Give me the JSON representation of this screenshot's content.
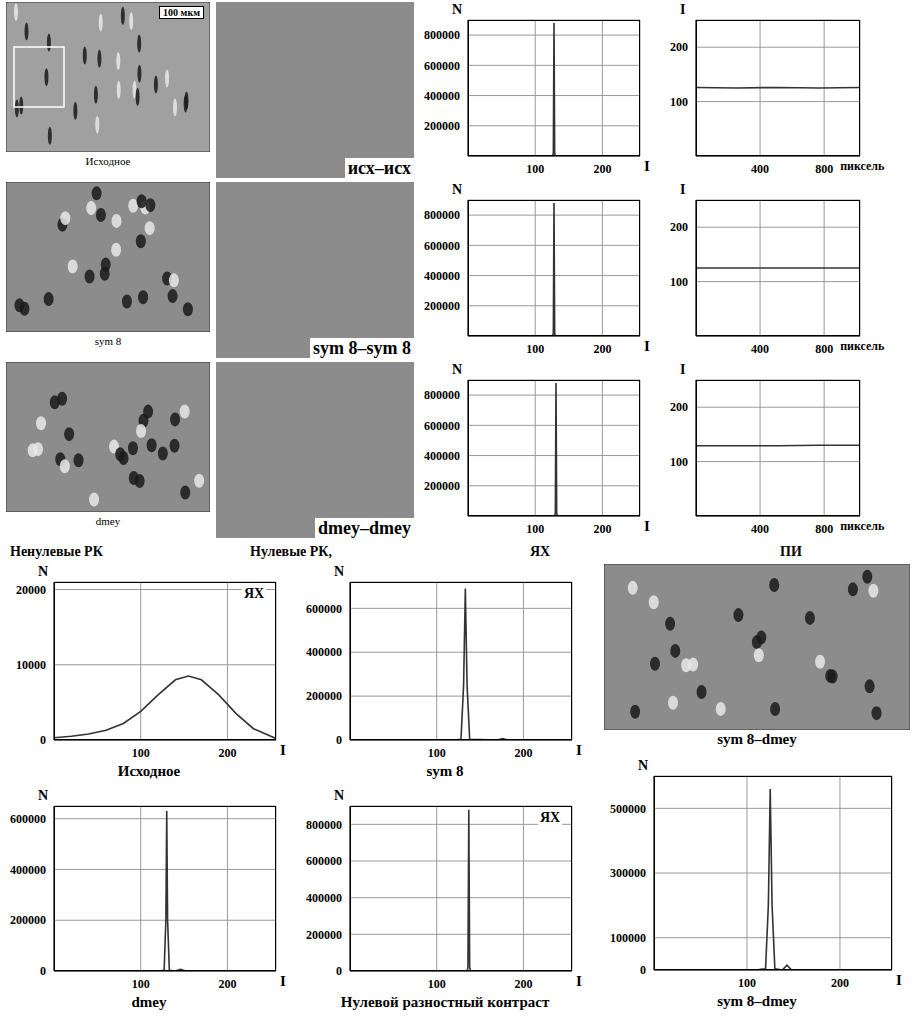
{
  "images": [
    {
      "caption": "Исходное",
      "scale_bar": "100 мкм"
    },
    {
      "caption": "sym 8"
    },
    {
      "caption": "dmey"
    }
  ],
  "difference_images": [
    "исх–исх",
    "sym 8–sym 8",
    "dmey–dmey"
  ],
  "column_heads": [
    "Ненулевые РК",
    "Нулевые РК,",
    "ЯХ",
    "ПИ"
  ],
  "bottom_image": {
    "caption": "sym 8–dmey"
  },
  "chart_data": [
    {
      "type": "line",
      "x_label": "I",
      "y_label": "N",
      "x": [
        0,
        120,
        126,
        127,
        128,
        129,
        130,
        136,
        256
      ],
      "values": [
        0,
        0,
        0,
        20000,
        880000,
        20000,
        0,
        0,
        0
      ],
      "xlim": [
        0,
        256
      ],
      "ylim": [
        0,
        900000
      ],
      "xticks": [
        100,
        200
      ],
      "yticks": [
        200000,
        400000,
        600000,
        800000
      ],
      "grid": true,
      "color": "#333333"
    },
    {
      "type": "line",
      "x_label": "пиксель",
      "y_label": "I",
      "x": [
        0,
        256,
        512,
        768,
        1024
      ],
      "values": [
        126,
        125,
        126,
        125,
        126
      ],
      "xlim": [
        0,
        1024
      ],
      "ylim": [
        0,
        250
      ],
      "xticks": [
        400,
        800
      ],
      "yticks": [
        100,
        200
      ],
      "grid": true,
      "color": "#333333"
    },
    {
      "type": "line",
      "x_label": "I",
      "y_label": "N",
      "x": [
        0,
        120,
        126,
        127,
        128,
        129,
        130,
        136,
        256
      ],
      "values": [
        0,
        0,
        0,
        20000,
        880000,
        20000,
        0,
        0,
        0
      ],
      "xlim": [
        0,
        256
      ],
      "ylim": [
        0,
        900000
      ],
      "xticks": [
        100,
        200
      ],
      "yticks": [
        200000,
        400000,
        600000,
        800000
      ],
      "grid": true,
      "color": "#333333"
    },
    {
      "type": "line",
      "x_label": "пиксель",
      "y_label": "I",
      "x": [
        0,
        256,
        512,
        768,
        1024
      ],
      "values": [
        125,
        125,
        125,
        125,
        125
      ],
      "xlim": [
        0,
        1024
      ],
      "ylim": [
        0,
        250
      ],
      "xticks": [
        400,
        800
      ],
      "yticks": [
        100,
        200
      ],
      "grid": true,
      "color": "#333333"
    },
    {
      "type": "line",
      "x_label": "I",
      "y_label": "N",
      "x": [
        0,
        123,
        129,
        130,
        131,
        132,
        133,
        139,
        256
      ],
      "values": [
        0,
        0,
        0,
        20000,
        880000,
        20000,
        0,
        0,
        0
      ],
      "xlim": [
        0,
        256
      ],
      "ylim": [
        0,
        900000
      ],
      "xticks": [
        100,
        200
      ],
      "yticks": [
        200000,
        400000,
        600000,
        800000
      ],
      "grid": true,
      "color": "#333333"
    },
    {
      "type": "line",
      "x_label": "пиксель",
      "y_label": "I",
      "x": [
        0,
        256,
        512,
        768,
        1024
      ],
      "values": [
        129,
        129,
        129,
        130,
        130
      ],
      "xlim": [
        0,
        1024
      ],
      "ylim": [
        0,
        250
      ],
      "xticks": [
        400,
        800
      ],
      "yticks": [
        100,
        200
      ],
      "grid": true,
      "color": "#333333"
    },
    {
      "type": "line",
      "title": "Исходное",
      "annotation": "ЯХ",
      "x_label": "I",
      "y_label": "N",
      "x": [
        0,
        20,
        40,
        60,
        80,
        100,
        120,
        140,
        155,
        170,
        190,
        210,
        230,
        250,
        256
      ],
      "values": [
        300,
        500,
        800,
        1300,
        2200,
        3800,
        6000,
        8000,
        8500,
        8000,
        6000,
        3500,
        1500,
        500,
        200
      ],
      "xlim": [
        0,
        256
      ],
      "ylim": [
        0,
        21000
      ],
      "xticks": [
        100,
        200
      ],
      "yticks": [
        0,
        10000,
        20000
      ],
      "grid": true,
      "color": "#333333"
    },
    {
      "type": "line",
      "title": "sym 8",
      "x_label": "I",
      "y_label": "N",
      "x": [
        0,
        120,
        128,
        131,
        133,
        135,
        138,
        170,
        176,
        182,
        256
      ],
      "values": [
        0,
        0,
        3000,
        250000,
        690000,
        250000,
        3000,
        0,
        6000,
        0,
        0
      ],
      "xlim": [
        0,
        256
      ],
      "ylim": [
        0,
        720000
      ],
      "xticks": [
        100,
        200
      ],
      "yticks": [
        0,
        200000,
        400000,
        600000
      ],
      "grid": true,
      "color": "#333333"
    },
    {
      "type": "line",
      "title": "dmey",
      "x_label": "I",
      "y_label": "N",
      "x": [
        0,
        120,
        127,
        129,
        130,
        131,
        133,
        140,
        146,
        152,
        256
      ],
      "values": [
        0,
        0,
        3000,
        200000,
        630000,
        200000,
        3000,
        0,
        7000,
        0,
        0
      ],
      "xlim": [
        0,
        256
      ],
      "ylim": [
        0,
        650000
      ],
      "xticks": [
        100,
        200
      ],
      "yticks": [
        0,
        200000,
        400000,
        600000
      ],
      "grid": true,
      "color": "#333333"
    },
    {
      "type": "line",
      "title": "Нулевой разностный контраст",
      "annotation": "ЯХ",
      "x_label": "I",
      "y_label": "N",
      "x": [
        0,
        130,
        135,
        136,
        137,
        138,
        139,
        256
      ],
      "values": [
        0,
        0,
        0,
        20000,
        880000,
        20000,
        0,
        0
      ],
      "xlim": [
        0,
        256
      ],
      "ylim": [
        0,
        900000
      ],
      "xticks": [
        100,
        200
      ],
      "yticks": [
        0,
        200000,
        400000,
        600000,
        800000
      ],
      "grid": true,
      "color": "#333333"
    },
    {
      "type": "line",
      "title": "sym 8–dmey",
      "x_label": "I",
      "y_label": "N",
      "x": [
        0,
        110,
        120,
        123,
        125,
        127,
        130,
        138,
        143,
        148,
        256
      ],
      "values": [
        0,
        0,
        4000,
        200000,
        560000,
        200000,
        4000,
        0,
        15000,
        0,
        0
      ],
      "xlim": [
        0,
        256
      ],
      "ylim": [
        0,
        600000
      ],
      "xticks": [
        100,
        200
      ],
      "yticks": [
        0,
        100000,
        300000,
        500000
      ],
      "grid": true,
      "color": "#333333"
    }
  ]
}
